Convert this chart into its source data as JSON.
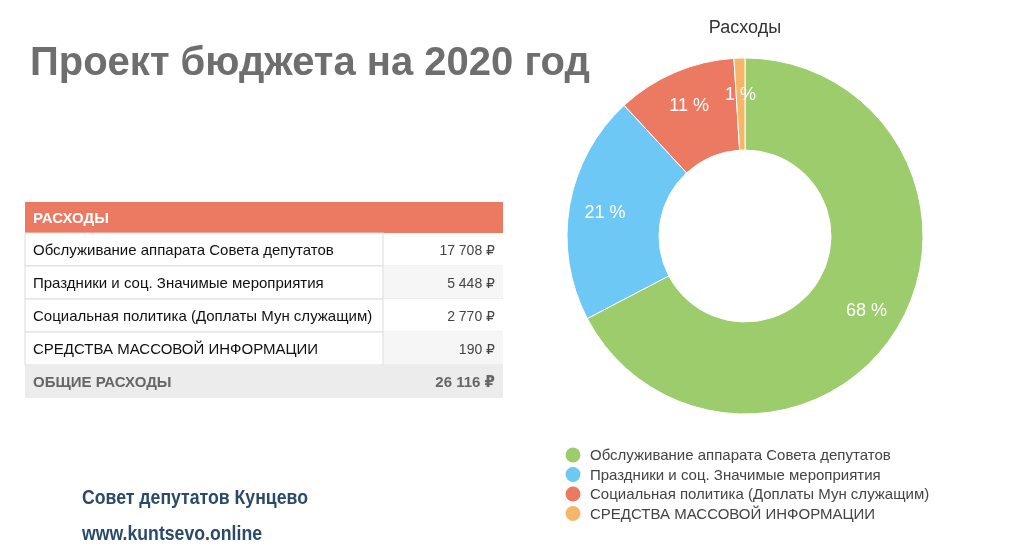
{
  "chart_data": [
    {
      "type": "other",
      "title": "Проект бюджета на 2020 год",
      "categories": [
        "Обслуживание аппарата Совета депутатов",
        "Праздники и соц. Значимые мероприятия",
        "Социальная политика (Доплаты Мун служащим)",
        "СРЕДСТВА МАССОВОЙ ИНФОРМАЦИИ"
      ],
      "value_labels": [
        "17 708 ₽",
        "5 448 ₽",
        "2 770 ₽",
        "190 ₽"
      ],
      "totals": [
        "26 116 ₽"
      ],
      "color": "#ec7a63",
      "annotations": [
        "РАСХОДЫ",
        "ОБЩИЕ РАСХОДЫ",
        "Совет депутатов Кунцево",
        "www.kuntsevo.online"
      ]
    },
    {
      "type": "donut",
      "title": "Расходы",
      "categories": [
        "Обслуживание аппарата Совета депутатов",
        "Праздники и соц. Значимые мероприятия",
        "Социальная политика (Доплаты Мун служащим)",
        "СРЕДСТВА МАССОВОЙ ИНФОРМАЦИИ"
      ],
      "values": [
        68,
        21,
        11,
        1
      ],
      "value_labels": [
        "68 %",
        "21 %",
        "11 %",
        "1 %"
      ],
      "colors": [
        "#9ccc6b",
        "#6ec8f5",
        "#ec7a63",
        "#f5b66a"
      ],
      "legend": "bottom"
    }
  ]
}
